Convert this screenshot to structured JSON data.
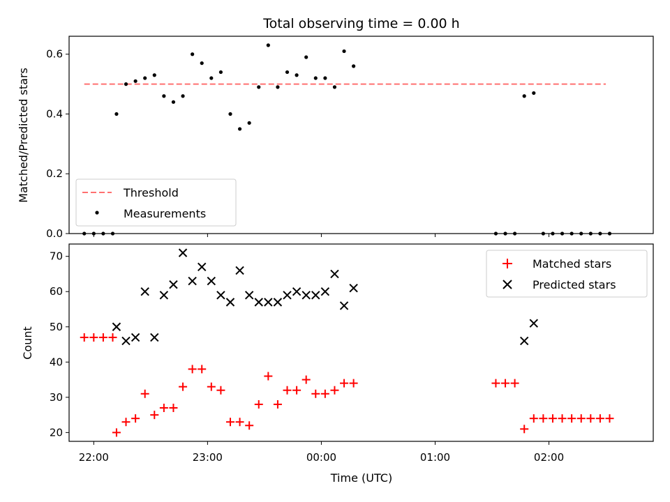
{
  "chart_data": [
    {
      "type": "scatter",
      "title": "Total observing time = 0.00 h",
      "xlabel": "",
      "ylabel": "Matched/Predicted stars",
      "xlim": [
        "21:47",
        "02:55"
      ],
      "ylim": [
        0,
        0.66
      ],
      "yticks": [
        0.0,
        0.2,
        0.4,
        0.6
      ],
      "ytick_labels": [
        "0.0",
        "0.2",
        "0.4",
        "0.6"
      ],
      "threshold": {
        "name": "Threshold",
        "value": 0.5,
        "x_start": "21:55",
        "x_end": "02:30",
        "color": "#ff7070"
      },
      "series": [
        {
          "name": "Measurements",
          "color": "#000000",
          "x": [
            "21:55",
            "22:00",
            "22:05",
            "22:10",
            "22:12",
            "22:17",
            "22:22",
            "22:27",
            "22:32",
            "22:37",
            "22:42",
            "22:47",
            "22:52",
            "22:57",
            "23:02",
            "23:07",
            "23:12",
            "23:17",
            "23:22",
            "23:27",
            "23:32",
            "23:37",
            "23:42",
            "23:47",
            "23:52",
            "23:57",
            "00:02",
            "00:07",
            "00:12",
            "00:17",
            "01:32",
            "01:37",
            "01:42",
            "01:47",
            "01:52",
            "01:57",
            "02:02",
            "02:07",
            "02:12",
            "02:17",
            "02:22",
            "02:27",
            "02:32"
          ],
          "y": [
            0,
            0,
            0,
            0,
            0.4,
            0.5,
            0.51,
            0.52,
            0.53,
            0.46,
            0.44,
            0.46,
            0.6,
            0.57,
            0.52,
            0.54,
            0.4,
            0.35,
            0.37,
            0.49,
            0.63,
            0.49,
            0.54,
            0.53,
            0.59,
            0.52,
            0.52,
            0.49,
            0.61,
            0.56,
            0,
            0,
            0,
            0.46,
            0.47,
            0,
            0,
            0,
            0,
            0,
            0,
            0,
            0
          ]
        }
      ],
      "legend_position": "lower-left"
    },
    {
      "type": "scatter",
      "title": "",
      "xlabel": "Time (UTC)",
      "ylabel": "Count",
      "xlim": [
        "21:47",
        "02:55"
      ],
      "ylim": [
        17.5,
        73.5
      ],
      "yticks": [
        20,
        30,
        40,
        50,
        60,
        70
      ],
      "ytick_labels": [
        "20",
        "30",
        "40",
        "50",
        "60",
        "70"
      ],
      "xticks": [
        "22:00",
        "23:00",
        "00:00",
        "01:00",
        "02:00"
      ],
      "xtick_labels": [
        "22:00",
        "23:00",
        "00:00",
        "01:00",
        "02:00"
      ],
      "series": [
        {
          "name": "Matched stars",
          "color": "#ff0000",
          "marker": "plus",
          "x": [
            "21:55",
            "22:00",
            "22:05",
            "22:10",
            "22:12",
            "22:17",
            "22:22",
            "22:27",
            "22:32",
            "22:37",
            "22:42",
            "22:47",
            "22:52",
            "22:57",
            "23:02",
            "23:07",
            "23:12",
            "23:17",
            "23:22",
            "23:27",
            "23:32",
            "23:37",
            "23:42",
            "23:47",
            "23:52",
            "23:57",
            "00:02",
            "00:07",
            "00:12",
            "00:17",
            "01:32",
            "01:37",
            "01:42",
            "01:47",
            "01:52",
            "01:57",
            "02:02",
            "02:07",
            "02:12",
            "02:17",
            "02:22",
            "02:27",
            "02:32"
          ],
          "y": [
            47,
            47,
            47,
            47,
            20,
            23,
            24,
            31,
            25,
            27,
            27,
            33,
            38,
            38,
            33,
            32,
            23,
            23,
            22,
            28,
            36,
            28,
            32,
            32,
            35,
            31,
            31,
            32,
            34,
            34,
            34,
            34,
            34,
            21,
            24,
            24,
            24,
            24,
            24,
            24,
            24,
            24,
            24
          ]
        },
        {
          "name": "Predicted stars",
          "color": "#000000",
          "marker": "x",
          "x": [
            "22:12",
            "22:17",
            "22:22",
            "22:27",
            "22:32",
            "22:37",
            "22:42",
            "22:47",
            "22:52",
            "22:57",
            "23:02",
            "23:07",
            "23:12",
            "23:17",
            "23:22",
            "23:27",
            "23:32",
            "23:37",
            "23:42",
            "23:47",
            "23:52",
            "23:57",
            "00:02",
            "00:07",
            "00:12",
            "00:17",
            "01:47",
            "01:52"
          ],
          "y": [
            50,
            46,
            47,
            60,
            47,
            59,
            62,
            71,
            63,
            67,
            63,
            59,
            57,
            66,
            59,
            57,
            57,
            57,
            59,
            60,
            59,
            59,
            60,
            65,
            56,
            61,
            46,
            51
          ]
        }
      ],
      "legend_position": "upper-right"
    }
  ]
}
